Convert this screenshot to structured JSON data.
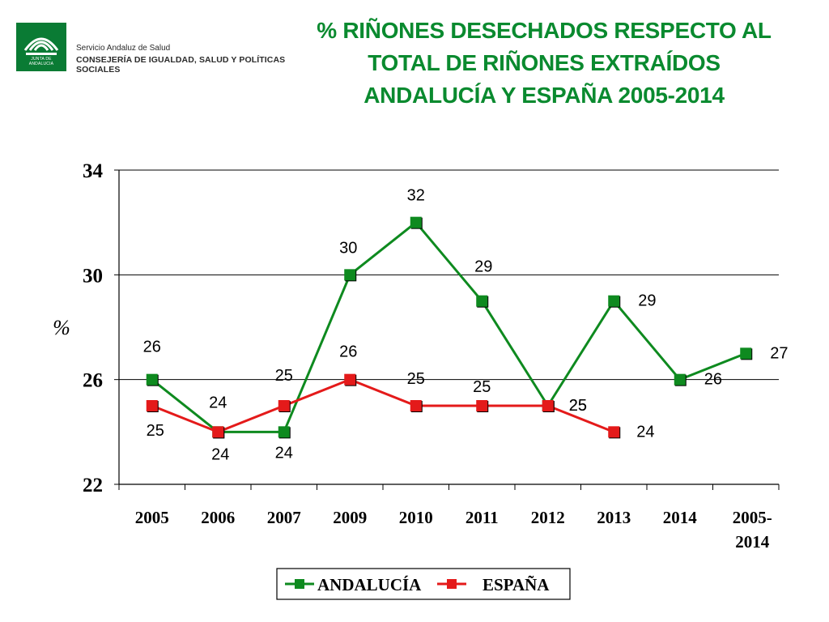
{
  "header": {
    "logo_text": "JUNTA DE ANDALUCIA",
    "org_line1": "Servicio Andaluz de Salud",
    "org_line2": "CONSEJERÍA DE IGUALDAD, SALUD Y POLÍTICAS SOCIALES",
    "title_lines": [
      "% RIÑONES DESECHADOS RESPECTO AL",
      "TOTAL DE  RIÑONES EXTRAÍDOS",
      "ANDALUCÍA Y ESPAÑA  2005-2014"
    ]
  },
  "chart_data": {
    "type": "line",
    "title": "% RIÑONES DESECHADOS RESPECTO AL TOTAL DE  RIÑONES EXTRAÍDOS ANDALUCÍA Y ESPAÑA  2005-2014",
    "xlabel": "",
    "ylabel": "%",
    "categories": [
      [
        "2005"
      ],
      [
        "2006"
      ],
      [
        "2007"
      ],
      [
        "2009"
      ],
      [
        "2010"
      ],
      [
        "2011"
      ],
      [
        "2012"
      ],
      [
        "2013"
      ],
      [
        "2014"
      ],
      [
        "2005-",
        "2014"
      ]
    ],
    "ylim": [
      22,
      34
    ],
    "yticks": [
      22,
      26,
      30,
      34
    ],
    "grid": true,
    "legend_position": "bottom-center",
    "series": [
      {
        "name": "ANDALUCÍA",
        "color": "#0e8a1f",
        "values": [
          26,
          24,
          24,
          30,
          32,
          29,
          25,
          29,
          26,
          27
        ],
        "labels": [
          "26",
          "24",
          "24",
          "30",
          "32",
          "29",
          "25",
          "29",
          "26",
          "27"
        ]
      },
      {
        "name": "ESPAÑA",
        "color": "#e41a1a",
        "values": [
          25,
          24,
          25,
          26,
          25,
          25,
          25,
          24,
          null,
          null
        ],
        "labels": [
          "25",
          "24",
          "25",
          "26",
          "25",
          "25",
          "25",
          "24",
          null,
          null
        ]
      }
    ]
  }
}
